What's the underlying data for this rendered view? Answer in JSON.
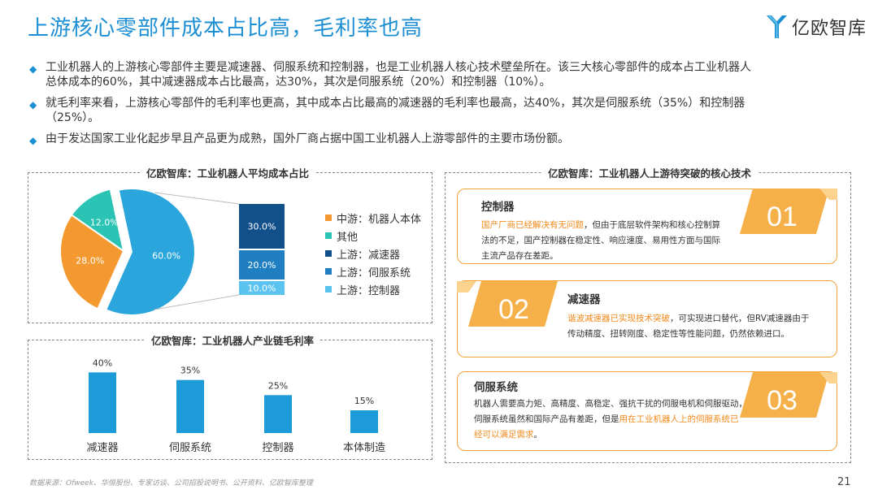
{
  "title": "上游核心零部件成本占比高，毛利率也高",
  "logo": {
    "text": "亿欧智库",
    "color": "#1c8fd4"
  },
  "bullets": [
    {
      "line1": "工业机器人的上游核心零部件主要是减速器、伺服系统和控制器，也是工业机器人核心技术壁垒所在。该三大核心零部件的成本占工业机器人",
      "line2": "总体成本的60%，其中减速器成本占比最高，达30%，其次是伺服系统（20%）和控制器（10%）。"
    },
    {
      "line1": "就毛利率来看，上游核心零部件的毛利率也更高，其中成本占比最高的减速器的毛利率也最高，达40%，其次是伺服系统（35%）和控制器",
      "line2": "（25%）。"
    },
    {
      "line1": "由于发达国家工业化起步早且产品更为成熟，国外厂商占据中国工业机器人上游零部件的主要市场份额。",
      "line2": ""
    }
  ],
  "cost_panel": {
    "title": "亿欧智库：工业机器人平均成本占比"
  },
  "margin_panel": {
    "title": "亿欧智库：工业机器人产业链毛利率"
  },
  "tech_panel": {
    "title": "亿欧智库：工业机器人上游待突破的核心技术"
  },
  "chart_data": [
    {
      "type": "pie",
      "title": "亿欧智库：工业机器人平均成本占比",
      "slices": [
        {
          "name": "上游",
          "value": 60.0,
          "label": "60.0%",
          "color": "#2aa6dc"
        },
        {
          "name": "中游：机器人本体",
          "value": 28.0,
          "label": "28.0%",
          "color": "#f4992f"
        },
        {
          "name": "其他",
          "value": 12.0,
          "label": "12.0%",
          "color": "#2bc3b3"
        }
      ],
      "breakdown": [
        {
          "name": "上游：减速器",
          "value": 30.0,
          "label": "30.0%",
          "color": "#11508b"
        },
        {
          "name": "上游：伺服系统",
          "value": 20.0,
          "label": "20.0%",
          "color": "#1f7fc1"
        },
        {
          "name": "上游：控制器",
          "value": 10.0,
          "label": "10.0%",
          "color": "#5bc3ef"
        }
      ],
      "legend": [
        {
          "label": "中游：机器人本体",
          "color": "#f4992f"
        },
        {
          "label": "其他",
          "color": "#2bc3b3"
        },
        {
          "label": "上游：减速器",
          "color": "#11508b"
        },
        {
          "label": "上游：伺服系统",
          "color": "#1f7fc1"
        },
        {
          "label": "上游：控制器",
          "color": "#5bc3ef"
        }
      ]
    },
    {
      "type": "bar",
      "title": "亿欧智库：工业机器人产业链毛利率",
      "categories": [
        "减速器",
        "伺服系统",
        "控制器",
        "本体制造"
      ],
      "values": [
        40,
        35,
        25,
        15
      ],
      "labels": [
        "40%",
        "35%",
        "25%",
        "15%"
      ],
      "color": "#1c9bd8",
      "ylim": [
        0,
        45
      ]
    }
  ],
  "cards": [
    {
      "num": "01",
      "title": "控制器",
      "hl": "国产厂商已经解决有无问题",
      "text1": "，但由于底层软件架构和核心控制算",
      "text2": "法的不足，国产控制器在稳定性、响应速度、易用性方面与国际",
      "text3": "主流产品存在差距。"
    },
    {
      "num": "02",
      "title": "减速器",
      "hl": "谐波减速器已实现技术突破",
      "text1": "，可实现进口替代，但RV减速器由于",
      "text2": "传动精度、扭转刚度、稳定性等性能问题，仍然依赖进口。",
      "text3": ""
    },
    {
      "num": "03",
      "title": "伺服系统",
      "text1": "机器人需要高力矩、高精度、高稳定、强抗干扰的伺服电机和伺服驱动，",
      "text2": "伺服系统虽然和国际产品有差距，但是",
      "hl": "用在工业机器人上的伺服系统已",
      "hl2": "经可以满足需求",
      "text3": "。"
    }
  ],
  "source": "数据来源：Ofweek、华恒股份、专家访谈、公司招股说明书、公开资料、亿欧智库整理",
  "page_number": "21"
}
